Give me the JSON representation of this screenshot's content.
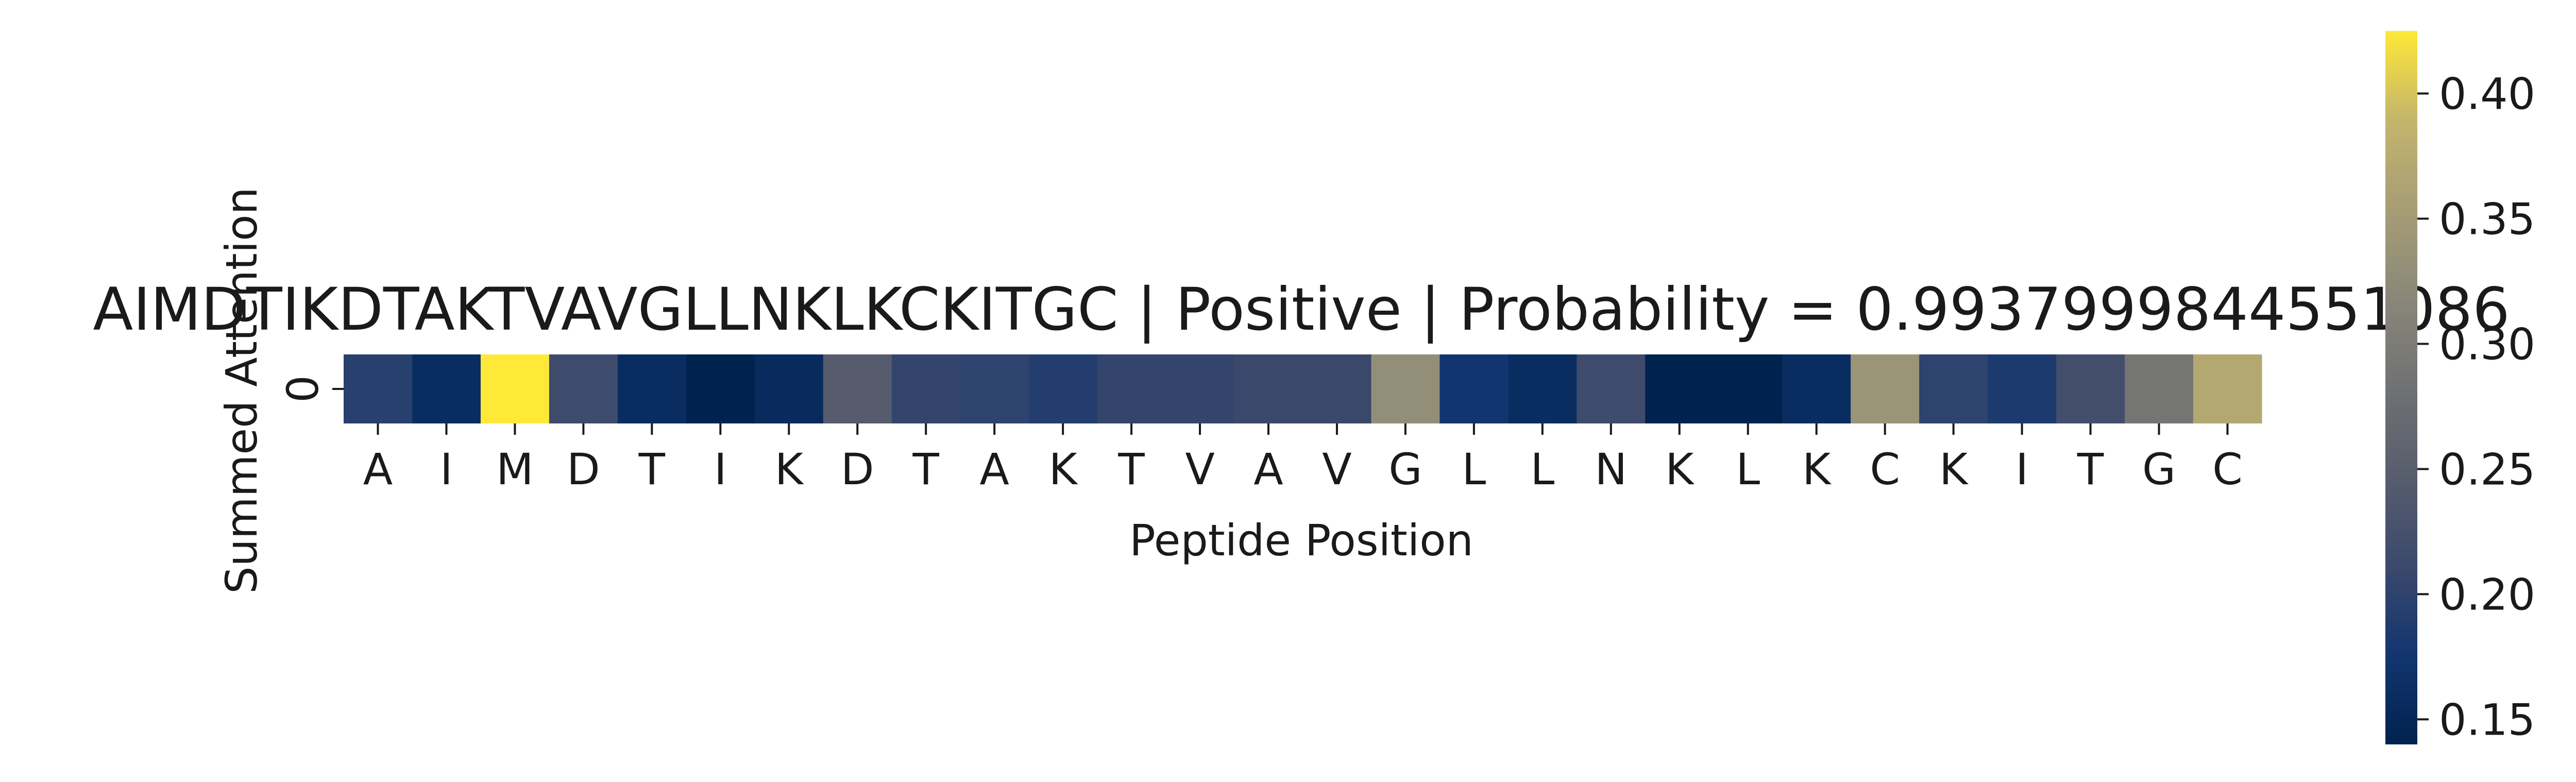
{
  "chart_data": {
    "type": "heatmap",
    "title": "AIMDTIKDTAKTVAVGLLNKLKCKITGC | Positive | Probability = 0.9937999844551086",
    "xlabel": "Peptide Position",
    "ylabel": "Summed Attention",
    "x_categories": [
      "A",
      "I",
      "M",
      "D",
      "T",
      "I",
      "K",
      "D",
      "T",
      "A",
      "K",
      "T",
      "V",
      "A",
      "V",
      "G",
      "L",
      "L",
      "N",
      "K",
      "L",
      "K",
      "C",
      "K",
      "I",
      "T",
      "G",
      "C"
    ],
    "y_categories": [
      "0"
    ],
    "values": [
      [
        0.195,
        0.16,
        0.425,
        0.215,
        0.16,
        0.14,
        0.155,
        0.245,
        0.205,
        0.2,
        0.19,
        0.205,
        0.205,
        0.21,
        0.21,
        0.33,
        0.175,
        0.16,
        0.215,
        0.14,
        0.14,
        0.16,
        0.34,
        0.2,
        0.185,
        0.22,
        0.29,
        0.37
      ]
    ],
    "colormap": "cividis",
    "colorbar": {
      "range": [
        0.14,
        0.425
      ],
      "ticks": [
        "0.15",
        "0.20",
        "0.25",
        "0.30",
        "0.35",
        "0.40"
      ]
    },
    "colors": {
      "low": "#00224e",
      "mid": "#7c7b78",
      "high": "#fee838"
    },
    "grid": false,
    "legend": "colorbar-right"
  }
}
